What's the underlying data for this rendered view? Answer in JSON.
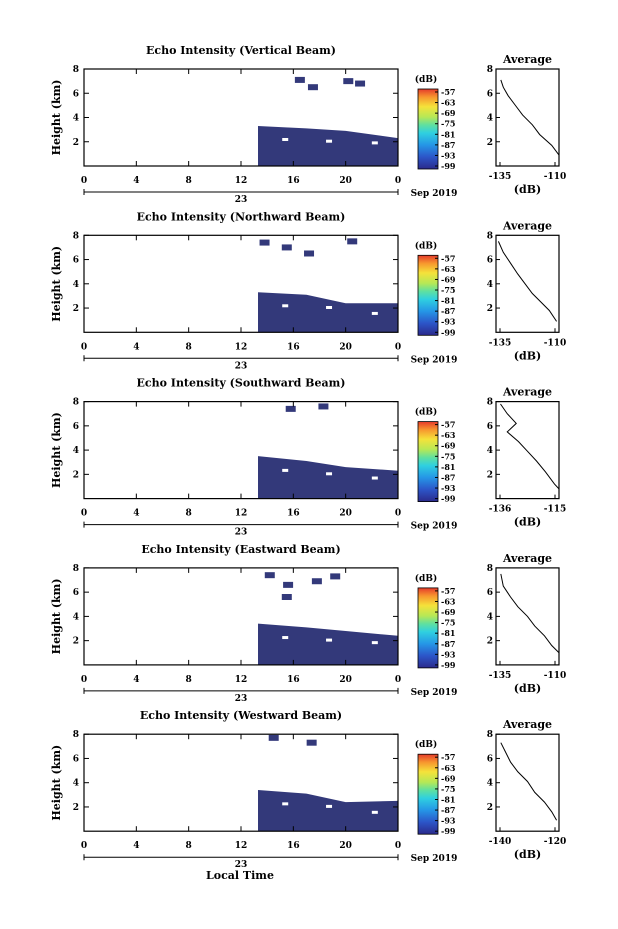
{
  "footer": {
    "xlabel": "Local Time"
  },
  "chart_data": [
    {
      "type": "heatmap",
      "title": "Echo Intensity (Vertical Beam)",
      "ylabel": "Height (km)",
      "xlim": [
        0,
        24
      ],
      "ylim": [
        0,
        8
      ],
      "x_ticks": [
        "0",
        "4",
        "8",
        "12",
        "16",
        "20",
        "0"
      ],
      "y_ticks": [
        "2",
        "4",
        "6",
        "8"
      ],
      "day_label": "23",
      "month_label": "Sep 2019",
      "colorbar": {
        "title": "(dB)",
        "ticks": [
          "-57",
          "-63",
          "-69",
          "-75",
          "-81",
          "-87",
          "-93",
          "-99"
        ]
      },
      "echo_region": {
        "x_start": 13.3,
        "x_end": 24,
        "heights": [
          [
            13.3,
            3.3
          ],
          [
            17,
            3.1
          ],
          [
            20,
            2.9
          ],
          [
            24,
            2.3
          ]
        ]
      },
      "sparse_echo": [
        [
          16.5,
          7.1
        ],
        [
          17.5,
          6.5
        ],
        [
          20.2,
          7.0
        ],
        [
          21.1,
          6.8
        ]
      ],
      "profile": {
        "title": "Average",
        "xlabel": "(dB)",
        "xlim": [
          -136,
          -110
        ],
        "x_ticks": [
          "-135",
          "-110"
        ],
        "y_ticks": [
          "2",
          "4",
          "6",
          "8"
        ],
        "points": [
          [
            -134,
            7.1
          ],
          [
            -133,
            6.5
          ],
          [
            -131,
            5.8
          ],
          [
            -128,
            5.0
          ],
          [
            -125,
            4.2
          ],
          [
            -121,
            3.4
          ],
          [
            -118,
            2.6
          ],
          [
            -113,
            1.7
          ],
          [
            -110,
            0.9
          ]
        ]
      }
    },
    {
      "type": "heatmap",
      "title": "Echo Intensity (Northward Beam)",
      "ylabel": "Height (km)",
      "xlim": [
        0,
        24
      ],
      "ylim": [
        0,
        8
      ],
      "x_ticks": [
        "0",
        "4",
        "8",
        "12",
        "16",
        "20",
        "0"
      ],
      "y_ticks": [
        "2",
        "4",
        "6",
        "8"
      ],
      "day_label": "23",
      "month_label": "Sep 2019",
      "colorbar": {
        "title": "(dB)",
        "ticks": [
          "-57",
          "-63",
          "-69",
          "-75",
          "-81",
          "-87",
          "-93",
          "-99"
        ]
      },
      "echo_region": {
        "x_start": 13.3,
        "x_end": 24,
        "heights": [
          [
            13.3,
            3.3
          ],
          [
            17,
            3.1
          ],
          [
            20,
            2.4
          ],
          [
            24,
            2.4
          ]
        ]
      },
      "sparse_echo": [
        [
          13.8,
          7.4
        ],
        [
          15.5,
          7.0
        ],
        [
          17.2,
          6.5
        ],
        [
          20.5,
          7.5
        ]
      ],
      "profile": {
        "title": "Average",
        "xlabel": "(dB)",
        "xlim": [
          -136,
          -110
        ],
        "x_ticks": [
          "-135",
          "-110"
        ],
        "y_ticks": [
          "2",
          "4",
          "6",
          "8"
        ],
        "points": [
          [
            -135,
            7.5
          ],
          [
            -133,
            6.6
          ],
          [
            -130,
            5.7
          ],
          [
            -127,
            4.8
          ],
          [
            -124,
            4.0
          ],
          [
            -121,
            3.2
          ],
          [
            -118,
            2.6
          ],
          [
            -114,
            1.8
          ],
          [
            -111,
            0.9
          ]
        ]
      }
    },
    {
      "type": "heatmap",
      "title": "Echo Intensity (Southward Beam)",
      "ylabel": "Height (km)",
      "xlim": [
        0,
        24
      ],
      "ylim": [
        0,
        8
      ],
      "x_ticks": [
        "0",
        "4",
        "8",
        "12",
        "16",
        "20",
        "0"
      ],
      "y_ticks": [
        "2",
        "4",
        "6",
        "8"
      ],
      "day_label": "23",
      "month_label": "Sep 2019",
      "colorbar": {
        "title": "(dB)",
        "ticks": [
          "-57",
          "-63",
          "-69",
          "-75",
          "-81",
          "-87",
          "-93",
          "-99"
        ]
      },
      "echo_region": {
        "x_start": 13.3,
        "x_end": 24,
        "heights": [
          [
            13.3,
            3.5
          ],
          [
            17,
            3.1
          ],
          [
            20,
            2.6
          ],
          [
            24,
            2.3
          ]
        ]
      },
      "sparse_echo": [
        [
          15.8,
          7.4
        ],
        [
          18.3,
          7.6
        ]
      ],
      "profile": {
        "title": "Average",
        "xlabel": "(dB)",
        "xlim": [
          -138,
          -110
        ],
        "x_ticks": [
          "-136",
          "-115"
        ],
        "y_ticks": [
          "2",
          "4",
          "6",
          "8"
        ],
        "points": [
          [
            -136,
            7.8
          ],
          [
            -133,
            7.0
          ],
          [
            -129,
            6.2
          ],
          [
            -133,
            5.5
          ],
          [
            -128,
            4.7
          ],
          [
            -124,
            3.9
          ],
          [
            -120,
            3.1
          ],
          [
            -116,
            2.2
          ],
          [
            -112,
            1.2
          ],
          [
            -110,
            0.8
          ]
        ]
      }
    },
    {
      "type": "heatmap",
      "title": "Echo Intensity (Eastward Beam)",
      "ylabel": "Height (km)",
      "xlim": [
        0,
        24
      ],
      "ylim": [
        0,
        8
      ],
      "x_ticks": [
        "0",
        "4",
        "8",
        "12",
        "16",
        "20",
        "0"
      ],
      "y_ticks": [
        "2",
        "4",
        "6",
        "8"
      ],
      "day_label": "23",
      "month_label": "Sep 2019",
      "colorbar": {
        "title": "(dB)",
        "ticks": [
          "-57",
          "-63",
          "-69",
          "-75",
          "-81",
          "-87",
          "-93",
          "-99"
        ]
      },
      "echo_region": {
        "x_start": 13.3,
        "x_end": 24,
        "heights": [
          [
            13.3,
            3.4
          ],
          [
            17,
            3.1
          ],
          [
            20,
            2.8
          ],
          [
            24,
            2.4
          ]
        ]
      },
      "sparse_echo": [
        [
          14.2,
          7.4
        ],
        [
          15.6,
          6.6
        ],
        [
          17.8,
          6.9
        ],
        [
          19.2,
          7.3
        ],
        [
          15.5,
          5.6
        ]
      ],
      "profile": {
        "title": "Average",
        "xlabel": "(dB)",
        "xlim": [
          -136,
          -110
        ],
        "x_ticks": [
          "-135",
          "-110"
        ],
        "y_ticks": [
          "2",
          "4",
          "6",
          "8"
        ],
        "points": [
          [
            -134,
            7.5
          ],
          [
            -133,
            6.5
          ],
          [
            -130,
            5.6
          ],
          [
            -127,
            4.8
          ],
          [
            -123,
            4.0
          ],
          [
            -120,
            3.2
          ],
          [
            -116,
            2.4
          ],
          [
            -113,
            1.6
          ],
          [
            -110,
            1.0
          ]
        ]
      }
    },
    {
      "type": "heatmap",
      "title": "Echo Intensity (Westward Beam)",
      "ylabel": "Height (km)",
      "xlim": [
        0,
        24
      ],
      "ylim": [
        0,
        8
      ],
      "x_ticks": [
        "0",
        "4",
        "8",
        "12",
        "16",
        "20",
        "0"
      ],
      "y_ticks": [
        "2",
        "4",
        "6",
        "8"
      ],
      "day_label": "23",
      "month_label": "Sep 2019",
      "colorbar": {
        "title": "(dB)",
        "ticks": [
          "-57",
          "-63",
          "-69",
          "-75",
          "-81",
          "-87",
          "-93",
          "-99"
        ]
      },
      "echo_region": {
        "x_start": 13.3,
        "x_end": 24,
        "heights": [
          [
            13.3,
            3.4
          ],
          [
            17,
            3.1
          ],
          [
            20,
            2.4
          ],
          [
            24,
            2.5
          ]
        ]
      },
      "sparse_echo": [
        [
          14.5,
          7.7
        ],
        [
          17.4,
          7.3
        ]
      ],
      "profile": {
        "title": "Average",
        "xlabel": "(dB)",
        "xlim": [
          -142,
          -116
        ],
        "x_ticks": [
          "-140",
          "-120"
        ],
        "y_ticks": [
          "2",
          "4",
          "6",
          "8"
        ],
        "points": [
          [
            -140,
            7.3
          ],
          [
            -138,
            6.5
          ],
          [
            -136,
            5.7
          ],
          [
            -133,
            4.9
          ],
          [
            -129,
            4.1
          ],
          [
            -126,
            3.2
          ],
          [
            -122,
            2.4
          ],
          [
            -119,
            1.6
          ],
          [
            -117,
            0.9
          ]
        ]
      }
    }
  ]
}
